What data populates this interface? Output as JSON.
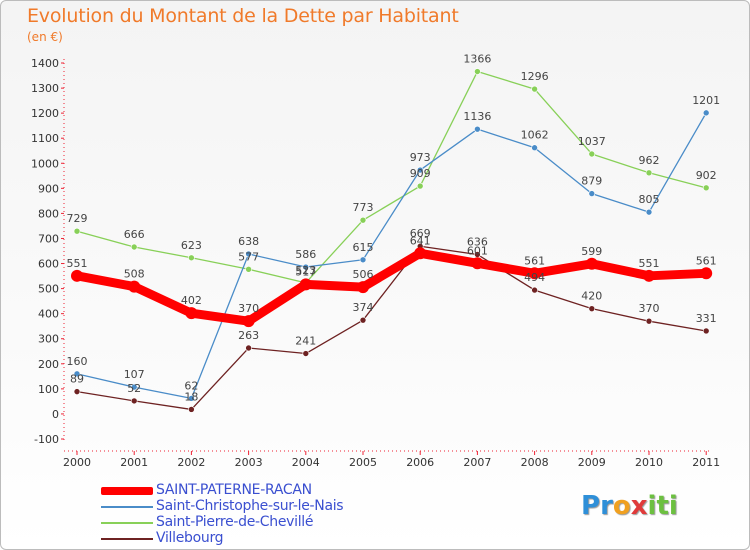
{
  "title": "Evolution du Montant de la Dette par Habitant",
  "subtitle": "(en €)",
  "logo": {
    "text": "Proxiti",
    "letters": [
      "P",
      "r",
      "o",
      "x",
      "i",
      "t",
      "i"
    ],
    "colors": [
      "#2e8fd8",
      "#2e8fd8",
      "#f0a020",
      "#e03a3a",
      "#6cc040",
      "#6cc040",
      "#6cc040"
    ]
  },
  "chart_data": {
    "type": "line",
    "title": "Evolution du Montant de la Dette par Habitant",
    "ylabel": "(en €)",
    "xlabel": "",
    "x": [
      "2000",
      "2001",
      "2002",
      "2003",
      "2004",
      "2005",
      "2006",
      "2007",
      "2008",
      "2009",
      "2010",
      "2011"
    ],
    "ylim": [
      -100,
      1400
    ],
    "yticks": [
      -100,
      0,
      100,
      200,
      300,
      400,
      500,
      600,
      700,
      800,
      900,
      1000,
      1100,
      1200,
      1300,
      1400
    ],
    "grid": false,
    "legend_position": "bottom-left",
    "series": [
      {
        "name": "SAINT-PATERNE-RACAN",
        "color": "#ff0000",
        "values": [
          551,
          508,
          402,
          370,
          517,
          506,
          641,
          601,
          561,
          599,
          551,
          561
        ]
      },
      {
        "name": "Saint-Christophe-sur-le-Nais",
        "color": "#4a8cc8",
        "values": [
          160,
          107,
          62,
          638,
          586,
          615,
          973,
          1136,
          1062,
          879,
          805,
          1201
        ]
      },
      {
        "name": "Saint-Pierre-de-Chevillé",
        "color": "#88d058",
        "values": [
          729,
          666,
          623,
          577,
          523,
          773,
          909,
          1366,
          1296,
          1037,
          962,
          902
        ]
      },
      {
        "name": "Villebourg",
        "color": "#6e2222",
        "values": [
          89,
          52,
          18,
          263,
          241,
          374,
          669,
          636,
          494,
          420,
          370,
          331
        ]
      }
    ]
  }
}
